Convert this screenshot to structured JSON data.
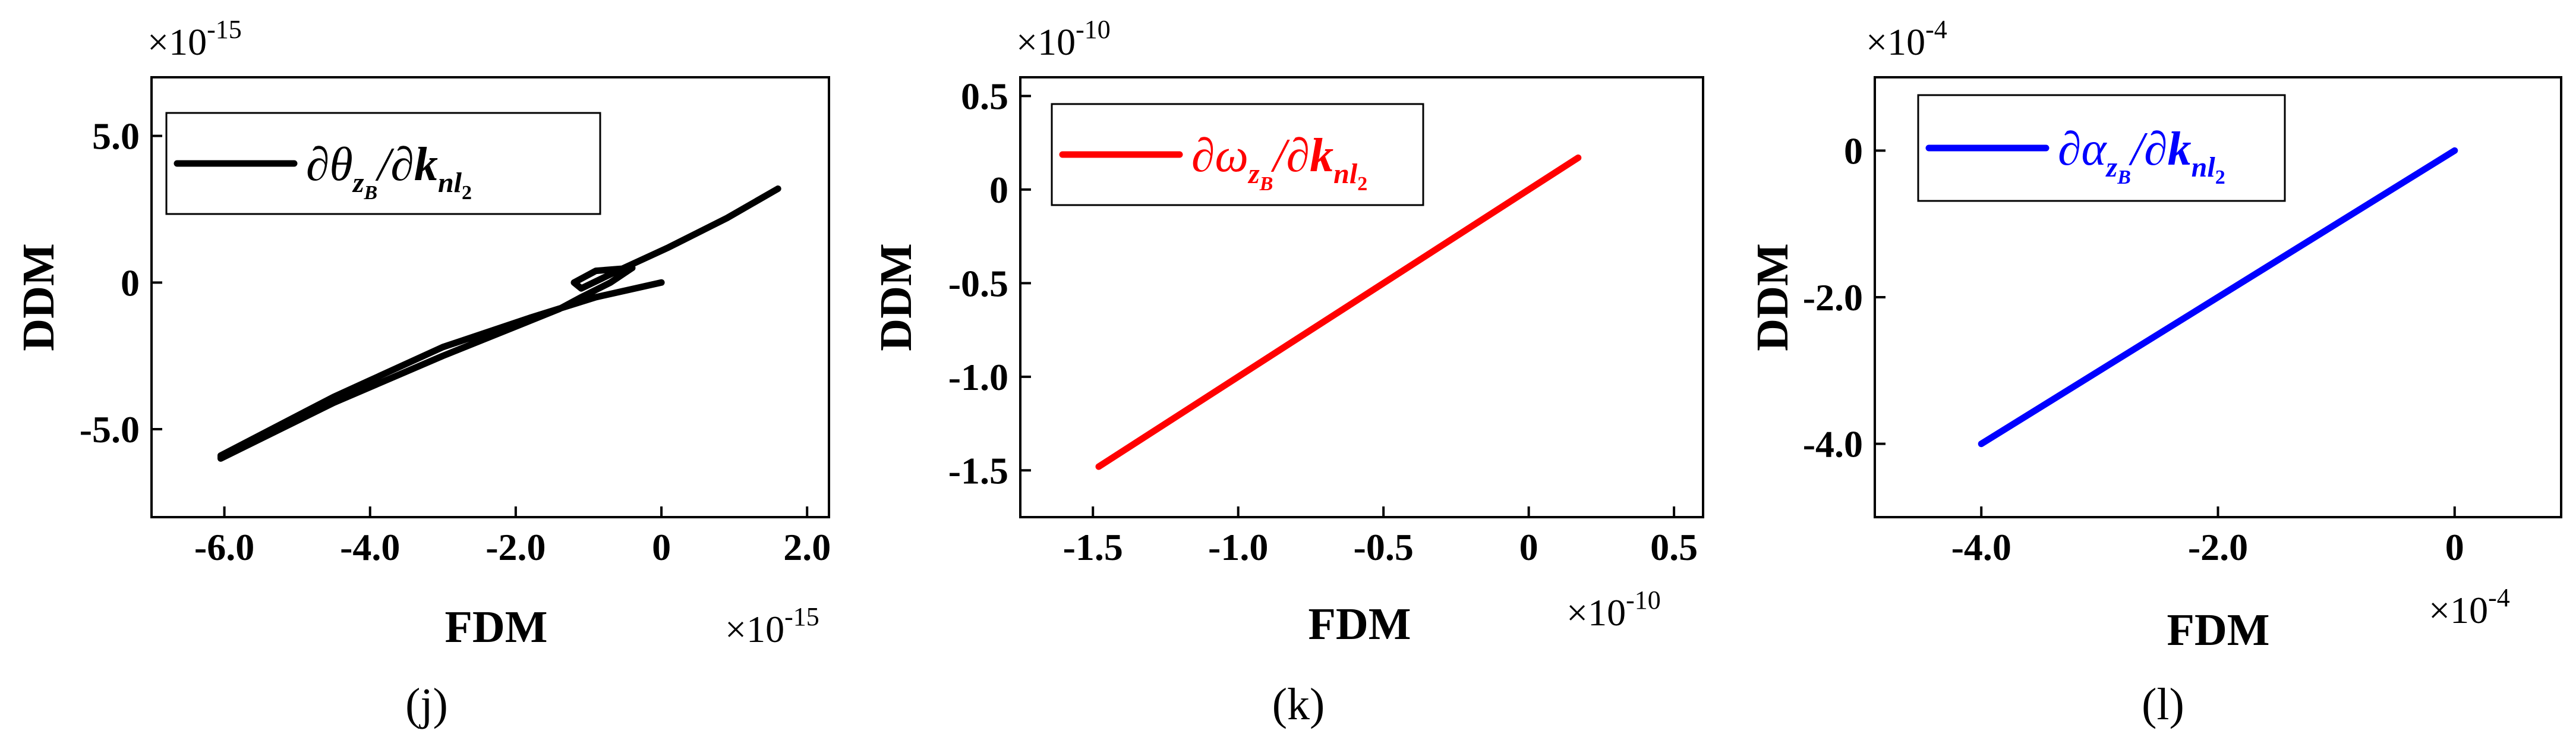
{
  "chart_data": [
    {
      "panel": "(j)",
      "type": "line",
      "xlabel": "FDM",
      "ylabel": "DDM",
      "x_multiplier": "×10",
      "x_multiplier_exp": "-15",
      "y_multiplier": "×10",
      "y_multiplier_exp": "-15",
      "xlim": [
        -7.0,
        2.3
      ],
      "ylim": [
        -8.0,
        7.0
      ],
      "x_ticks": [
        -6.0,
        -4.0,
        -2.0,
        0,
        2.0
      ],
      "x_tick_labels": [
        "-6.0",
        "-4.0",
        "-2.0",
        "0",
        "2.0"
      ],
      "y_ticks": [
        -5.0,
        0,
        5.0
      ],
      "y_tick_labels": [
        "-5.0",
        "0",
        "5.0"
      ],
      "legend_position": "top-left",
      "series": [
        {
          "name": "∂θzB/∂knl2",
          "legend_main": "∂θ",
          "legend_sub": "z",
          "legend_subsub": "B",
          "legend_rest": "/∂",
          "legend_k": "k",
          "legend_ksub": "nl",
          "legend_ksubsub": "2",
          "color": "#000000",
          "x": [
            1.6,
            0.9,
            0.1,
            -0.6,
            -1.1,
            -1.2,
            -0.9,
            -0.4,
            -0.7,
            -1.1,
            -1.4,
            -1.9,
            -3.0,
            -4.5,
            -6.05,
            -6.05,
            -4.5,
            -3.0,
            -1.8,
            -0.9,
            0.0
          ],
          "y": [
            3.2,
            2.2,
            1.2,
            0.4,
            -0.2,
            0.0,
            0.4,
            0.5,
            0.0,
            -0.5,
            -0.9,
            -1.4,
            -2.5,
            -4.1,
            -6.0,
            -5.9,
            -3.9,
            -2.2,
            -1.2,
            -0.5,
            0.0
          ]
        }
      ]
    },
    {
      "panel": "(k)",
      "type": "line",
      "xlabel": "FDM",
      "ylabel": "DDM",
      "x_multiplier": "×10",
      "x_multiplier_exp": "-10",
      "y_multiplier": "×10",
      "y_multiplier_exp": "-10",
      "xlim": [
        -1.75,
        0.6
      ],
      "ylim": [
        -1.75,
        0.6
      ],
      "x_ticks": [
        -1.5,
        -1.0,
        -0.5,
        0,
        0.5
      ],
      "x_tick_labels": [
        "-1.5",
        "-1.0",
        "-0.5",
        "0",
        "0.5"
      ],
      "y_ticks": [
        -1.5,
        -1.0,
        -0.5,
        0,
        0.5
      ],
      "y_tick_labels": [
        "-1.5",
        "-1.0",
        "-0.5",
        "0",
        "0.5"
      ],
      "legend_position": "top-left",
      "series": [
        {
          "name": "∂ωzB/∂knl2",
          "legend_main": "∂ω",
          "legend_sub": "z",
          "legend_subsub": "B",
          "legend_rest": "/∂",
          "legend_k": "k",
          "legend_ksub": "nl",
          "legend_ksubsub": "2",
          "color": "#ff0000",
          "x": [
            -1.48,
            0.17
          ],
          "y": [
            -1.48,
            0.17
          ]
        }
      ]
    },
    {
      "panel": "(l)",
      "type": "line",
      "xlabel": "FDM",
      "ylabel": "DDM",
      "x_multiplier": "×10",
      "x_multiplier_exp": "-4",
      "y_multiplier": "×10",
      "y_multiplier_exp": "-4",
      "xlim": [
        -4.9,
        0.9
      ],
      "ylim": [
        -5.0,
        1.0
      ],
      "x_ticks": [
        -4.0,
        -2.0,
        0
      ],
      "x_tick_labels": [
        "-4.0",
        "-2.0",
        "0"
      ],
      "y_ticks": [
        -4.0,
        -2.0,
        0
      ],
      "y_tick_labels": [
        "-4.0",
        "-2.0",
        "0"
      ],
      "legend_position": "top-left",
      "series": [
        {
          "name": "∂αzB/∂knl2",
          "legend_main": "∂α",
          "legend_sub": "z",
          "legend_subsub": "B",
          "legend_rest": "/∂",
          "legend_k": "k",
          "legend_ksub": "nl",
          "legend_ksubsub": "2",
          "color": "#0000ff",
          "x": [
            -4.0,
            0.0
          ],
          "y": [
            -4.0,
            0.0
          ]
        }
      ]
    }
  ]
}
